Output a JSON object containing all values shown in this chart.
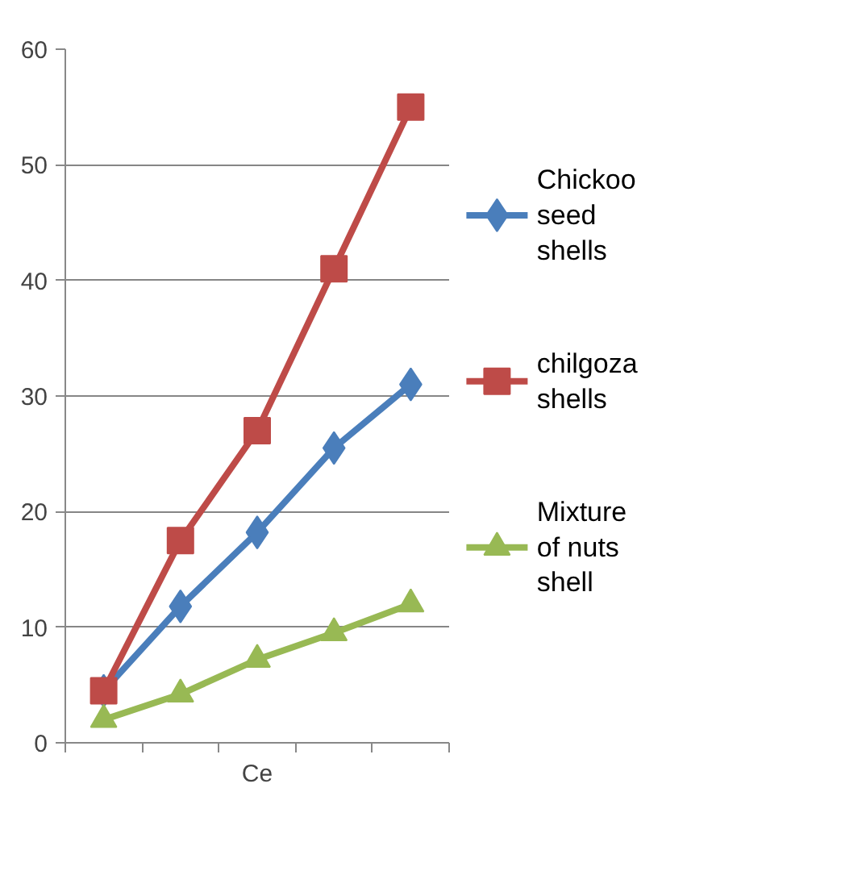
{
  "chart_data": {
    "type": "line",
    "xlabel": "Ce",
    "categories": [
      null,
      null,
      null,
      null,
      null
    ],
    "ylim": [
      0,
      60
    ],
    "yticks": [
      0,
      10,
      20,
      30,
      40,
      50,
      60
    ],
    "grid": "y",
    "legend": "right",
    "series": [
      {
        "name": "Chickoo seed shells",
        "color": "#4a7ebb",
        "marker": "diamond",
        "values": [
          4.5,
          11.8,
          18.2,
          25.5,
          31
        ]
      },
      {
        "name": "chilgoza shells",
        "color": "#be4b48",
        "marker": "square",
        "values": [
          4.5,
          17.5,
          27,
          41,
          55
        ]
      },
      {
        "name": "Mixture of nuts shell",
        "color": "#98b954",
        "marker": "triangle",
        "values": [
          2,
          4.2,
          7.2,
          9.5,
          12
        ]
      }
    ]
  }
}
